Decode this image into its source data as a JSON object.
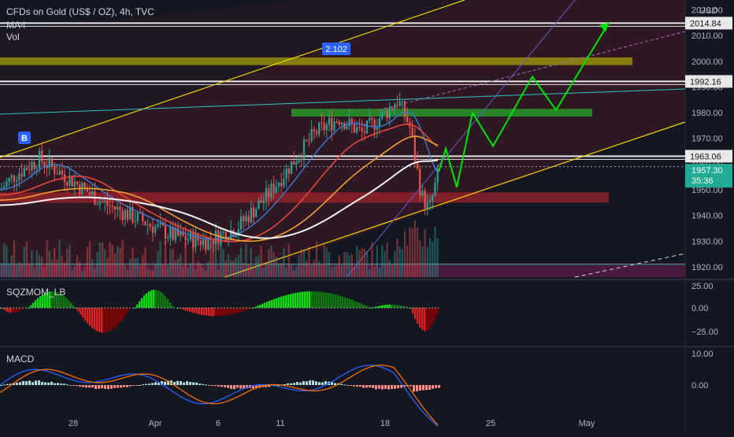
{
  "header": {
    "title": "CFDs on Gold (US$ / OZ), 4h, TVC",
    "indicator_1": "MA4",
    "indicator_2": "Vol",
    "currency": "USD"
  },
  "colors": {
    "background": "#131722",
    "bull": "#26a69a",
    "bear": "#ef5350",
    "projection": "#00e600",
    "channel": "#f2d200",
    "current_price": "#22ab94",
    "grid_text": "#b2b5be"
  },
  "chart_data": [
    {
      "type": "line",
      "name": "price-panel",
      "title": "CFDs on Gold (US$ / OZ), 4h, TVC",
      "ylim": [
        1916,
        2022
      ],
      "y_ticks": [
        1920,
        1930,
        1940,
        1950,
        1960,
        1970,
        1980,
        1990,
        2000,
        2010,
        2020
      ],
      "y_tick_labels": [
        "1920.00",
        "1930.00",
        "1940.00",
        "1950.00",
        "1960.00",
        "1970.00",
        "1980.00",
        "1990.00",
        "2000.00",
        "2010.00",
        "2020.00"
      ],
      "x_tick_labels": [
        "28",
        "Apr",
        "6",
        "11",
        "18",
        "25",
        "May"
      ],
      "price_tags": [
        {
          "value": 2014.84,
          "label": "2014.84",
          "style": "level"
        },
        {
          "value": 1992.16,
          "label": "1992.16",
          "style": "level"
        },
        {
          "value": 1963.06,
          "label": "1963.06",
          "style": "level"
        },
        {
          "value": 1957.3,
          "label": "1957.30",
          "style": "current",
          "countdown": "35:36"
        }
      ],
      "annotations": [
        {
          "label": "2.102",
          "kind": "ratio-badge"
        },
        {
          "label": "B",
          "kind": "signal-badge"
        }
      ],
      "zones": [
        {
          "name": "supply-zone",
          "from": 1998.5,
          "to": 2001.5
        },
        {
          "name": "resistance-zone",
          "from": 1978.5,
          "to": 1981.5
        },
        {
          "name": "demand-zone",
          "from": 1945,
          "to": 1949
        }
      ],
      "projection_path": [
        1957,
        1966,
        1951,
        1980,
        1967,
        1994,
        1981,
        2015
      ]
    },
    {
      "type": "bar",
      "name": "SQZMOM_LB",
      "title": "SQZMOM_LB",
      "ylim": [
        -30,
        30
      ],
      "y_tick_labels": [
        "25.00",
        "0.00",
        "−25.00"
      ]
    },
    {
      "type": "bar",
      "name": "MACD",
      "title": "MACD",
      "ylim": [
        -12,
        12
      ],
      "y_tick_labels": [
        "10.00",
        "0.00"
      ]
    }
  ]
}
